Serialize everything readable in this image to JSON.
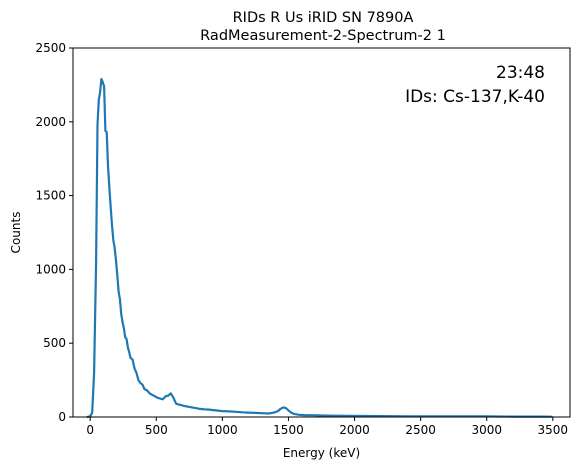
{
  "chart_data": {
    "type": "line",
    "title_line1": "RIDs R Us iRID SN 7890A",
    "title_line2": "RadMeasurement-2-Spectrum-2 1",
    "xlabel": "Energy (keV)",
    "ylabel": "Counts",
    "xlim": [
      -130,
      3630
    ],
    "ylim": [
      0,
      2500
    ],
    "xticks": [
      0,
      500,
      1000,
      1500,
      2000,
      2500,
      3000,
      3500
    ],
    "yticks": [
      0,
      500,
      1000,
      1500,
      2000,
      2500
    ],
    "grid": false,
    "annotations": [
      {
        "text": "23:48"
      },
      {
        "text": "IDs: Cs-137,K-40"
      }
    ],
    "series": [
      {
        "color": "#1f77b4",
        "x": [
          -20,
          0,
          15,
          30,
          45,
          55,
          65,
          75,
          85,
          95,
          105,
          115,
          125,
          135,
          145,
          155,
          165,
          175,
          185,
          195,
          205,
          215,
          225,
          235,
          245,
          255,
          265,
          275,
          285,
          295,
          305,
          320,
          335,
          350,
          365,
          380,
          395,
          410,
          430,
          450,
          470,
          490,
          510,
          530,
          550,
          570,
          590,
          610,
          630,
          650,
          670,
          690,
          710,
          740,
          770,
          800,
          830,
          860,
          900,
          950,
          1000,
          1050,
          1100,
          1150,
          1200,
          1250,
          1300,
          1350,
          1390,
          1420,
          1440,
          1460,
          1480,
          1500,
          1520,
          1540,
          1560,
          1580,
          1620,
          1680,
          1750,
          1850,
          1950,
          2050,
          2200,
          2400,
          2600,
          2800,
          3000,
          3200,
          3400,
          3490
        ],
        "y": [
          0,
          5,
          30,
          300,
          1050,
          1980,
          2150,
          2200,
          2290,
          2270,
          2240,
          1940,
          1930,
          1700,
          1560,
          1420,
          1300,
          1200,
          1150,
          1060,
          960,
          850,
          800,
          700,
          640,
          600,
          540,
          530,
          470,
          440,
          400,
          390,
          330,
          300,
          250,
          230,
          220,
          190,
          180,
          160,
          150,
          140,
          130,
          125,
          120,
          140,
          145,
          160,
          130,
          90,
          85,
          80,
          75,
          70,
          65,
          60,
          55,
          52,
          50,
          45,
          40,
          38,
          35,
          32,
          30,
          28,
          26,
          24,
          30,
          40,
          55,
          65,
          60,
          45,
          30,
          22,
          18,
          15,
          13,
          12,
          10,
          9,
          8,
          7,
          6,
          5,
          5,
          4,
          4,
          3,
          3,
          2
        ]
      }
    ]
  }
}
